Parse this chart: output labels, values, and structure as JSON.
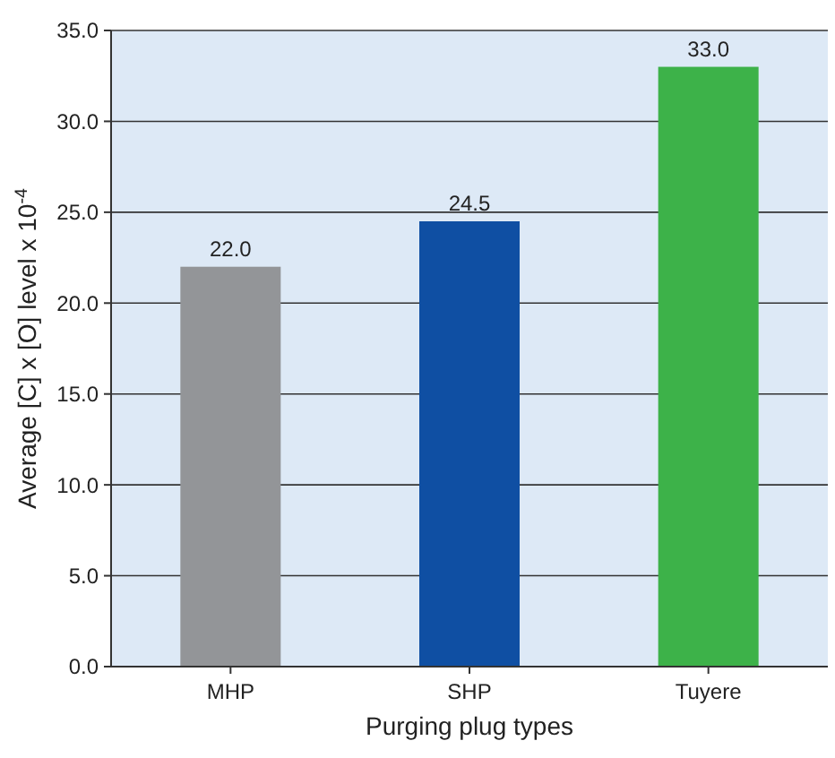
{
  "chart_data": {
    "type": "bar",
    "xlabel": "Purging plug types",
    "ylabel": "Average [C] x [O] level x 10$^{-4}$",
    "categories": [
      "MHP",
      "SHP",
      "Tuyere"
    ],
    "values": [
      22.0,
      24.5,
      33.0
    ],
    "colors": [
      "#939598",
      "#0f4fa3",
      "#3db249"
    ],
    "ylim": [
      0,
      35
    ],
    "yticks": [
      {
        "value": 0,
        "label": "0.0"
      },
      {
        "value": 5,
        "label": "5.0"
      },
      {
        "value": 10,
        "label": "10.0"
      },
      {
        "value": 15,
        "label": "15.0"
      },
      {
        "value": 20,
        "label": "20.0"
      },
      {
        "value": 25,
        "label": "25.0"
      },
      {
        "value": 30,
        "label": "30.0"
      },
      {
        "value": 35,
        "label": "35.0"
      }
    ],
    "value_labels": [
      "22.0",
      "24.5",
      "33.0"
    ],
    "grid": "y"
  }
}
